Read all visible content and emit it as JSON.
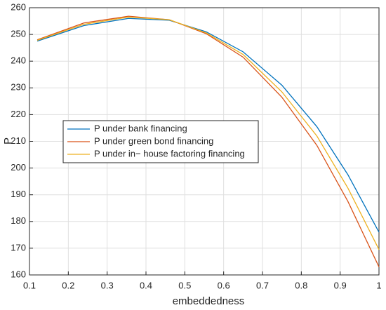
{
  "chart_data": {
    "type": "line",
    "xlabel": "embeddedness",
    "ylabel": "P",
    "x": [
      0.12,
      0.24,
      0.355,
      0.46,
      0.555,
      0.65,
      0.75,
      0.84,
      0.92,
      1.0
    ],
    "series": [
      {
        "name": "P under bank financing",
        "color": "#0072bd",
        "values": [
          247.5,
          253.3,
          256.0,
          255.3,
          251.0,
          243.5,
          231.0,
          215.5,
          197.5,
          176.0
        ]
      },
      {
        "name": "P under green bond financing",
        "color": "#d95319",
        "values": [
          248.0,
          254.3,
          256.8,
          255.5,
          250.3,
          241.5,
          226.5,
          208.5,
          187.5,
          163.0
        ]
      },
      {
        "name": "P under in− house factoring financing",
        "color": "#edb120",
        "values": [
          247.8,
          253.8,
          256.5,
          255.5,
          250.6,
          242.5,
          228.5,
          212.0,
          192.5,
          169.5
        ]
      }
    ],
    "xlim": [
      0.1,
      1
    ],
    "xticks": [
      0.1,
      0.2,
      0.3,
      0.4,
      0.5,
      0.6,
      0.7,
      0.8,
      0.9,
      1
    ],
    "ylim": [
      160,
      260
    ],
    "yticks": [
      160,
      170,
      180,
      190,
      200,
      210,
      220,
      230,
      240,
      250,
      260
    ],
    "grid": true,
    "legend": "west"
  }
}
